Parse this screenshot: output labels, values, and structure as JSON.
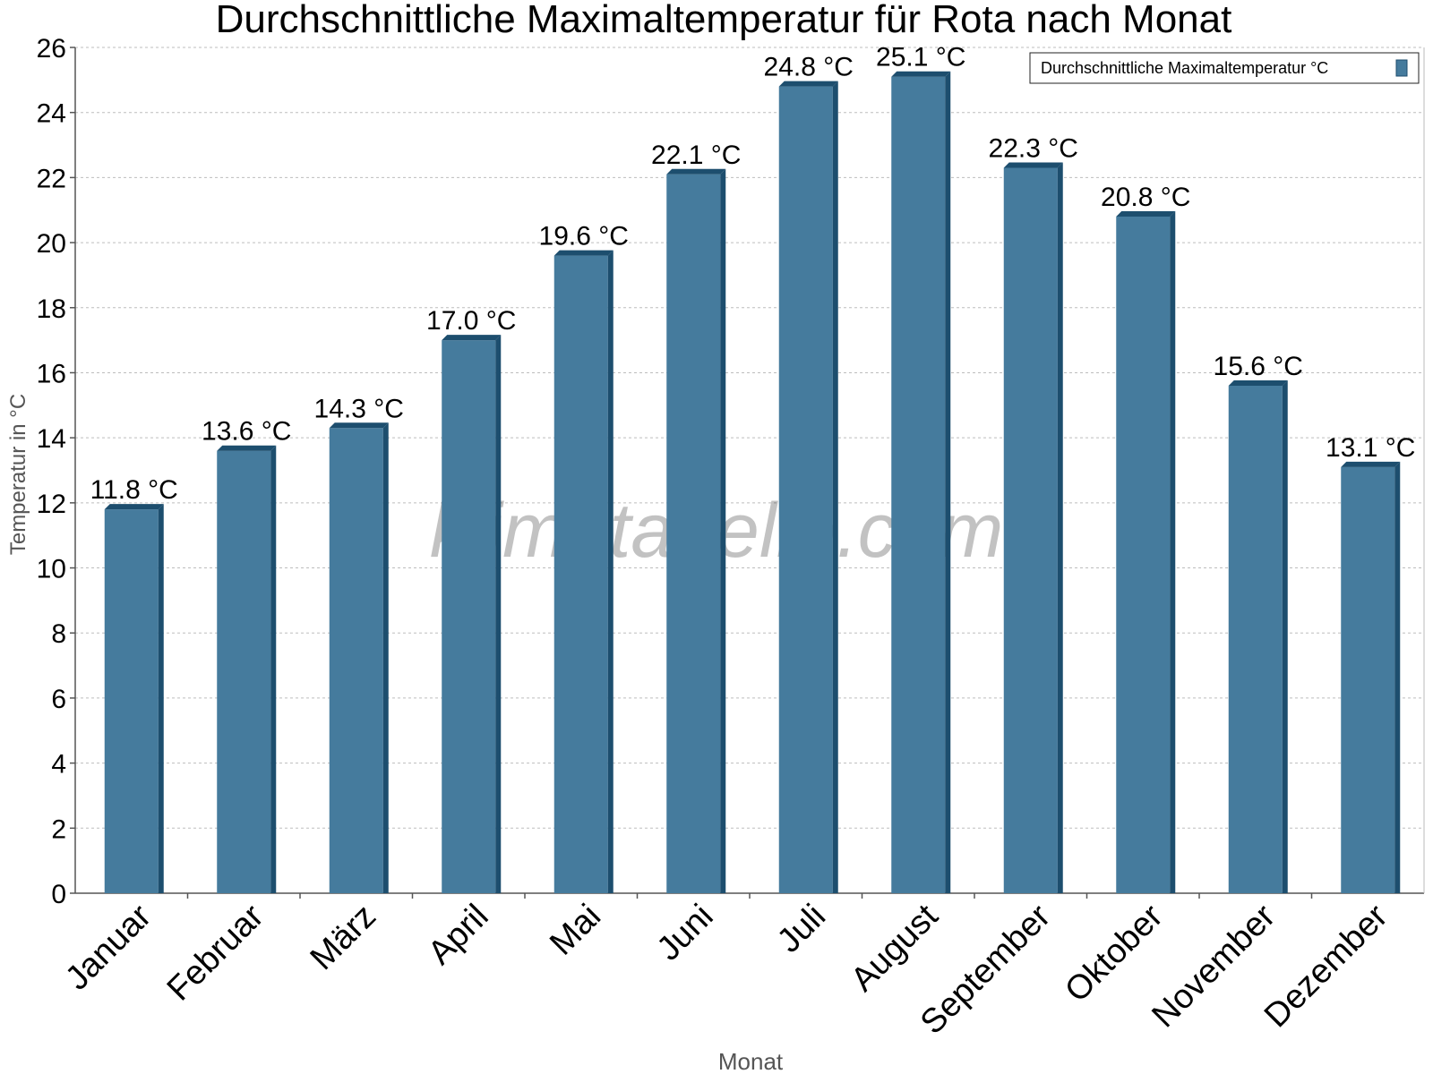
{
  "chart_data": {
    "type": "bar",
    "title": "Durchschnittliche Maximaltemperatur für Rota nach Monat",
    "xlabel": "Monat",
    "ylabel": "Temperatur in °C",
    "categories": [
      "Januar",
      "Februar",
      "März",
      "April",
      "Mai",
      "Juni",
      "Juli",
      "August",
      "September",
      "Oktober",
      "November",
      "Dezember"
    ],
    "series": [
      {
        "name": "Durchschnittliche Maximaltemperatur °C",
        "values": [
          11.8,
          13.6,
          14.3,
          17.0,
          19.6,
          22.1,
          24.8,
          25.1,
          22.3,
          20.8,
          15.6,
          13.1
        ],
        "data_labels": [
          "11.8 °C",
          "13.6 °C",
          "14.3 °C",
          "17.0 °C",
          "19.6 °C",
          "22.1 °C",
          "24.8 °C",
          "25.1 °C",
          "22.3 °C",
          "20.8 °C",
          "15.6 °C",
          "13.1 °C"
        ],
        "color": "#457b9d",
        "edge_color": "#1d4e6e"
      }
    ],
    "ylim": [
      0,
      26
    ],
    "yticks": [
      0,
      2,
      4,
      6,
      8,
      10,
      12,
      14,
      16,
      18,
      20,
      22,
      24,
      26
    ],
    "ytick_labels": [
      "0",
      "2",
      "4",
      "6",
      "8",
      "10",
      "12",
      "14",
      "16",
      "18",
      "20",
      "22",
      "24",
      "26"
    ],
    "grid": true,
    "legend_position": "top-right",
    "watermark": "klimatabelle.com"
  }
}
